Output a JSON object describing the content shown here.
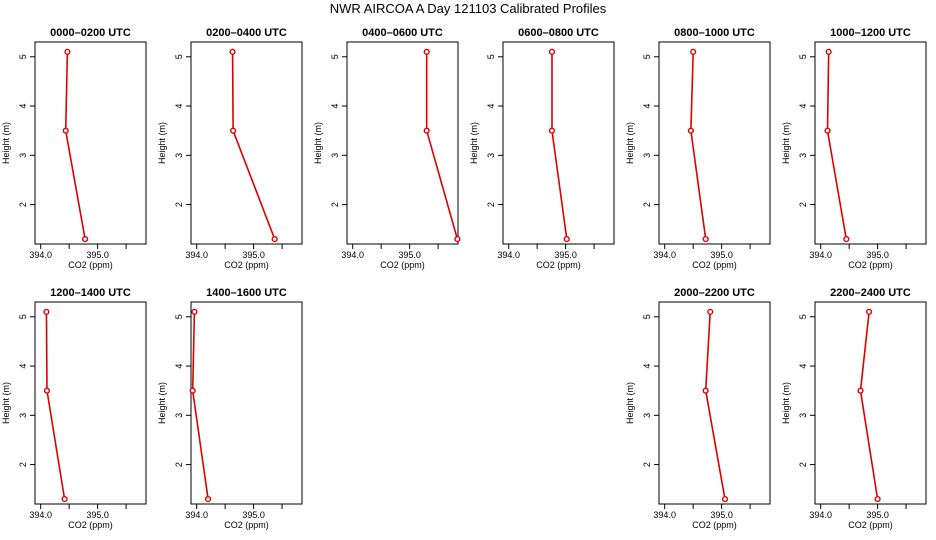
{
  "page_title": "NWR AIRCOA A  Day 121103  Calibrated Profiles",
  "colors": {
    "line": "#dd0000",
    "axes": "#000000"
  },
  "chart_data": [
    {
      "type": "line",
      "title": "0000–0200 UTC",
      "xlabel": "CO2 (ppm)",
      "ylabel": "Height (m)",
      "xlim": [
        393.9,
        395.85
      ],
      "ylim": [
        1.2,
        5.3
      ],
      "xticks": [
        "394.0",
        "395.0"
      ],
      "yticks": [
        "2",
        "3",
        "4",
        "5"
      ],
      "x": [
        394.47,
        394.44,
        394.78
      ],
      "y": [
        5.1,
        3.5,
        1.3
      ]
    },
    {
      "type": "line",
      "title": "0200–0400 UTC",
      "xlabel": "CO2 (ppm)",
      "ylabel": "Height (m)",
      "xlim": [
        393.9,
        395.85
      ],
      "ylim": [
        1.2,
        5.3
      ],
      "xticks": [
        "394.0",
        "395.0"
      ],
      "yticks": [
        "2",
        "3",
        "4",
        "5"
      ],
      "x": [
        394.63,
        394.64,
        395.37
      ],
      "y": [
        5.1,
        3.5,
        1.3
      ]
    },
    {
      "type": "line",
      "title": "0400–0600 UTC",
      "xlabel": "CO2 (ppm)",
      "ylabel": "Height (m)",
      "xlim": [
        393.9,
        395.85
      ],
      "ylim": [
        1.2,
        5.3
      ],
      "xticks": [
        "394.0",
        "395.0"
      ],
      "yticks": [
        "2",
        "3",
        "4",
        "5"
      ],
      "x": [
        395.3,
        395.3,
        395.84
      ],
      "y": [
        5.1,
        3.5,
        1.3
      ]
    },
    {
      "type": "line",
      "title": "0600–0800 UTC",
      "xlabel": "CO2 (ppm)",
      "ylabel": "Height (m)",
      "xlim": [
        393.9,
        395.85
      ],
      "ylim": [
        1.2,
        5.3
      ],
      "xticks": [
        "394.0",
        "395.0"
      ],
      "yticks": [
        "2",
        "3",
        "4",
        "5"
      ],
      "x": [
        394.76,
        394.76,
        395.02
      ],
      "y": [
        5.1,
        3.5,
        1.3
      ]
    },
    {
      "type": "line",
      "title": "0800–1000 UTC",
      "xlabel": "CO2 (ppm)",
      "ylabel": "Height (m)",
      "xlim": [
        393.9,
        395.85
      ],
      "ylim": [
        1.2,
        5.3
      ],
      "xticks": [
        "394.0",
        "395.0"
      ],
      "yticks": [
        "2",
        "3",
        "4",
        "5"
      ],
      "x": [
        394.5,
        394.46,
        394.72
      ],
      "y": [
        5.1,
        3.5,
        1.3
      ]
    },
    {
      "type": "line",
      "title": "1000–1200 UTC",
      "xlabel": "CO2 (ppm)",
      "ylabel": "Height (m)",
      "xlim": [
        393.9,
        395.85
      ],
      "ylim": [
        1.2,
        5.3
      ],
      "xticks": [
        "394.0",
        "395.0"
      ],
      "yticks": [
        "2",
        "3",
        "4",
        "5"
      ],
      "x": [
        394.14,
        394.12,
        394.45
      ],
      "y": [
        5.1,
        3.5,
        1.3
      ]
    },
    {
      "type": "line",
      "title": "1200–1400 UTC",
      "xlabel": "CO2 (ppm)",
      "ylabel": "Height (m)",
      "xlim": [
        393.9,
        395.85
      ],
      "ylim": [
        1.2,
        5.3
      ],
      "xticks": [
        "394.0",
        "395.0"
      ],
      "yticks": [
        "2",
        "3",
        "4",
        "5"
      ],
      "x": [
        394.1,
        394.11,
        394.42
      ],
      "y": [
        5.1,
        3.5,
        1.3
      ]
    },
    {
      "type": "line",
      "title": "1400–1600 UTC",
      "xlabel": "CO2 (ppm)",
      "ylabel": "Height (m)",
      "xlim": [
        393.9,
        395.85
      ],
      "ylim": [
        1.2,
        5.3
      ],
      "xticks": [
        "394.0",
        "395.0"
      ],
      "yticks": [
        "2",
        "3",
        "4",
        "5"
      ],
      "x": [
        393.96,
        393.93,
        394.2
      ],
      "y": [
        5.1,
        3.5,
        1.3
      ]
    },
    {
      "type": "line",
      "title": "2000–2200 UTC",
      "xlabel": "CO2 (ppm)",
      "ylabel": "Height (m)",
      "xlim": [
        393.9,
        395.85
      ],
      "ylim": [
        1.2,
        5.3
      ],
      "xticks": [
        "394.0",
        "395.0"
      ],
      "yticks": [
        "2",
        "3",
        "4",
        "5"
      ],
      "x": [
        394.8,
        394.72,
        395.06
      ],
      "y": [
        5.1,
        3.5,
        1.3
      ]
    },
    {
      "type": "line",
      "title": "2200–2400 UTC",
      "xlabel": "CO2 (ppm)",
      "ylabel": "Height (m)",
      "xlim": [
        393.9,
        395.85
      ],
      "ylim": [
        1.2,
        5.3
      ],
      "xticks": [
        "394.0",
        "395.0"
      ],
      "yticks": [
        "2",
        "3",
        "4",
        "5"
      ],
      "x": [
        394.85,
        394.7,
        395.0
      ],
      "y": [
        5.1,
        3.5,
        1.3
      ]
    }
  ]
}
